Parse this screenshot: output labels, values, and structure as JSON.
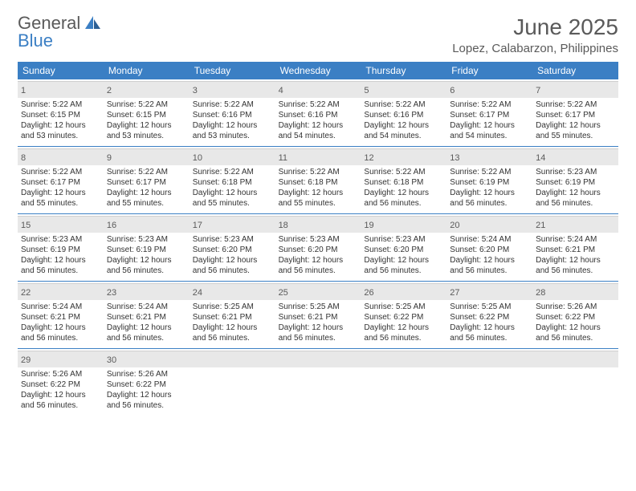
{
  "logo": {
    "line1": "General",
    "line2": "Blue"
  },
  "title": "June 2025",
  "location": "Lopez, Calabarzon, Philippines",
  "colors": {
    "accent": "#3b7fc4",
    "gray_bg": "#e8e8e8",
    "text_muted": "#5a5a5a",
    "text": "#333333"
  },
  "day_names": [
    "Sunday",
    "Monday",
    "Tuesday",
    "Wednesday",
    "Thursday",
    "Friday",
    "Saturday"
  ],
  "weeks": [
    [
      {
        "n": "1",
        "sr": "5:22 AM",
        "ss": "6:15 PM",
        "dl": "12 hours and 53 minutes."
      },
      {
        "n": "2",
        "sr": "5:22 AM",
        "ss": "6:15 PM",
        "dl": "12 hours and 53 minutes."
      },
      {
        "n": "3",
        "sr": "5:22 AM",
        "ss": "6:16 PM",
        "dl": "12 hours and 53 minutes."
      },
      {
        "n": "4",
        "sr": "5:22 AM",
        "ss": "6:16 PM",
        "dl": "12 hours and 54 minutes."
      },
      {
        "n": "5",
        "sr": "5:22 AM",
        "ss": "6:16 PM",
        "dl": "12 hours and 54 minutes."
      },
      {
        "n": "6",
        "sr": "5:22 AM",
        "ss": "6:17 PM",
        "dl": "12 hours and 54 minutes."
      },
      {
        "n": "7",
        "sr": "5:22 AM",
        "ss": "6:17 PM",
        "dl": "12 hours and 55 minutes."
      }
    ],
    [
      {
        "n": "8",
        "sr": "5:22 AM",
        "ss": "6:17 PM",
        "dl": "12 hours and 55 minutes."
      },
      {
        "n": "9",
        "sr": "5:22 AM",
        "ss": "6:17 PM",
        "dl": "12 hours and 55 minutes."
      },
      {
        "n": "10",
        "sr": "5:22 AM",
        "ss": "6:18 PM",
        "dl": "12 hours and 55 minutes."
      },
      {
        "n": "11",
        "sr": "5:22 AM",
        "ss": "6:18 PM",
        "dl": "12 hours and 55 minutes."
      },
      {
        "n": "12",
        "sr": "5:22 AM",
        "ss": "6:18 PM",
        "dl": "12 hours and 56 minutes."
      },
      {
        "n": "13",
        "sr": "5:22 AM",
        "ss": "6:19 PM",
        "dl": "12 hours and 56 minutes."
      },
      {
        "n": "14",
        "sr": "5:23 AM",
        "ss": "6:19 PM",
        "dl": "12 hours and 56 minutes."
      }
    ],
    [
      {
        "n": "15",
        "sr": "5:23 AM",
        "ss": "6:19 PM",
        "dl": "12 hours and 56 minutes."
      },
      {
        "n": "16",
        "sr": "5:23 AM",
        "ss": "6:19 PM",
        "dl": "12 hours and 56 minutes."
      },
      {
        "n": "17",
        "sr": "5:23 AM",
        "ss": "6:20 PM",
        "dl": "12 hours and 56 minutes."
      },
      {
        "n": "18",
        "sr": "5:23 AM",
        "ss": "6:20 PM",
        "dl": "12 hours and 56 minutes."
      },
      {
        "n": "19",
        "sr": "5:23 AM",
        "ss": "6:20 PM",
        "dl": "12 hours and 56 minutes."
      },
      {
        "n": "20",
        "sr": "5:24 AM",
        "ss": "6:20 PM",
        "dl": "12 hours and 56 minutes."
      },
      {
        "n": "21",
        "sr": "5:24 AM",
        "ss": "6:21 PM",
        "dl": "12 hours and 56 minutes."
      }
    ],
    [
      {
        "n": "22",
        "sr": "5:24 AM",
        "ss": "6:21 PM",
        "dl": "12 hours and 56 minutes."
      },
      {
        "n": "23",
        "sr": "5:24 AM",
        "ss": "6:21 PM",
        "dl": "12 hours and 56 minutes."
      },
      {
        "n": "24",
        "sr": "5:25 AM",
        "ss": "6:21 PM",
        "dl": "12 hours and 56 minutes."
      },
      {
        "n": "25",
        "sr": "5:25 AM",
        "ss": "6:21 PM",
        "dl": "12 hours and 56 minutes."
      },
      {
        "n": "26",
        "sr": "5:25 AM",
        "ss": "6:22 PM",
        "dl": "12 hours and 56 minutes."
      },
      {
        "n": "27",
        "sr": "5:25 AM",
        "ss": "6:22 PM",
        "dl": "12 hours and 56 minutes."
      },
      {
        "n": "28",
        "sr": "5:26 AM",
        "ss": "6:22 PM",
        "dl": "12 hours and 56 minutes."
      }
    ],
    [
      {
        "n": "29",
        "sr": "5:26 AM",
        "ss": "6:22 PM",
        "dl": "12 hours and 56 minutes."
      },
      {
        "n": "30",
        "sr": "5:26 AM",
        "ss": "6:22 PM",
        "dl": "12 hours and 56 minutes."
      },
      null,
      null,
      null,
      null,
      null
    ]
  ],
  "labels": {
    "sunrise": "Sunrise: ",
    "sunset": "Sunset: ",
    "daylight": "Daylight: "
  }
}
